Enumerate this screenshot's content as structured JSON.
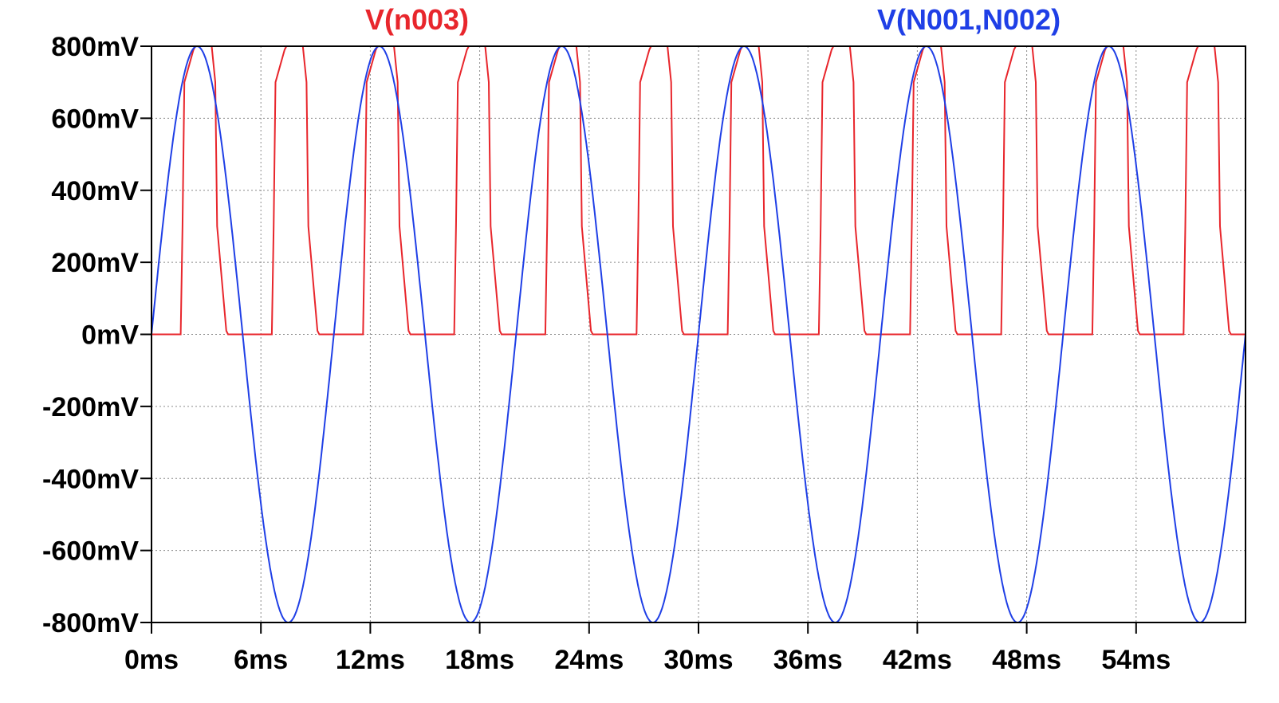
{
  "chart_data": {
    "type": "line",
    "xlabel": "",
    "ylabel": "",
    "x_unit": "ms",
    "y_unit": "mV",
    "xlim": [
      0,
      60
    ],
    "ylim": [
      -800,
      800
    ],
    "x_ticks": [
      0,
      6,
      12,
      18,
      24,
      30,
      36,
      42,
      48,
      54
    ],
    "x_tick_labels": [
      "0ms",
      "6ms",
      "12ms",
      "18ms",
      "24ms",
      "30ms",
      "36ms",
      "42ms",
      "48ms",
      "54ms"
    ],
    "y_ticks": [
      800,
      600,
      400,
      200,
      0,
      -200,
      -400,
      -600,
      -800
    ],
    "y_tick_labels": [
      "800mV",
      "600mV",
      "400mV",
      "200mV",
      "0mV",
      "-200mV",
      "-400mV",
      "-600mV",
      "-800mV"
    ],
    "grid": true,
    "series": [
      {
        "name": "V(n003)",
        "color": "#e8262c",
        "kind": "full-wave rectified pulse train",
        "period_ms": 5,
        "low_mV": 0,
        "high_mV": 800,
        "x": [
          0,
          1.6,
          1.7,
          1.8,
          2.3,
          2.4,
          3.3,
          3.5,
          3.6,
          4.1,
          4.2,
          5.0
        ],
        "y": [
          0,
          0,
          300,
          700,
          790,
          800,
          800,
          700,
          300,
          10,
          0,
          0
        ]
      },
      {
        "name": "V(N001,N002)",
        "color": "#1f3fe6",
        "kind": "sine",
        "amplitude_mV": 800,
        "period_ms": 10,
        "offset_mV": 0,
        "phase_deg": 0,
        "x": [
          0,
          2.5,
          5,
          7.5,
          10,
          12.5,
          15,
          17.5,
          20,
          22.5,
          25,
          27.5,
          30,
          32.5,
          35,
          37.5,
          40,
          42.5,
          45,
          47.5,
          50,
          52.5,
          55,
          57.5,
          60
        ],
        "y": [
          0,
          800,
          0,
          -800,
          0,
          800,
          0,
          -800,
          0,
          800,
          0,
          -800,
          0,
          800,
          0,
          -800,
          0,
          800,
          0,
          -800,
          0,
          800,
          0,
          -800,
          0
        ]
      }
    ]
  }
}
